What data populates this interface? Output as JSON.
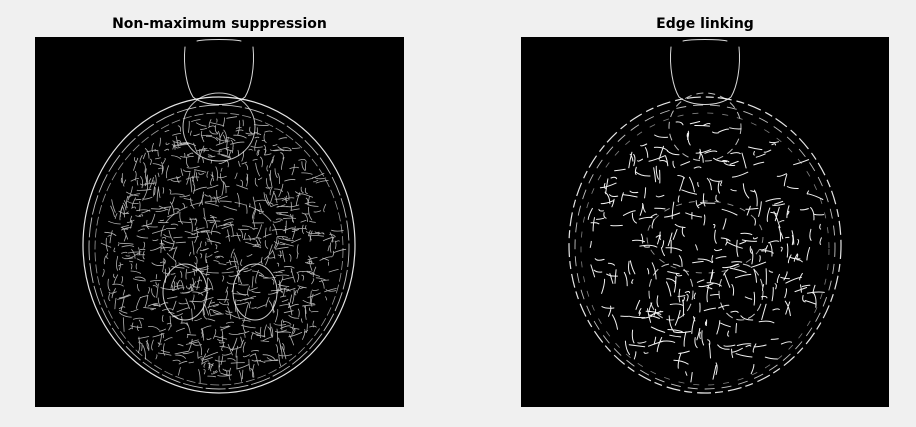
{
  "panels": [
    {
      "title": "Non-maximum suppression",
      "content": "dense thin white edge map of a skull cross-section on black background"
    },
    {
      "title": "Edge linking",
      "content": "sparser linked white edge segments of the same skull cross-section on black background"
    }
  ],
  "colors": {
    "figure_background": "#f0f0f0",
    "image_background": "#000000",
    "edge_color": "#ffffff"
  }
}
